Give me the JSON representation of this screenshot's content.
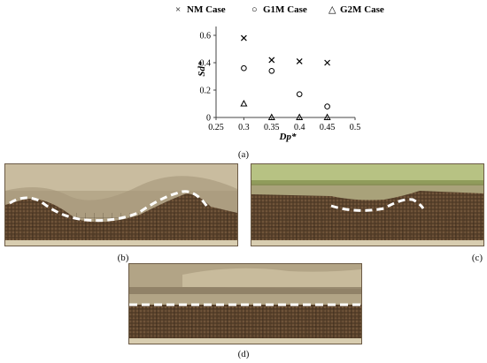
{
  "chart_data": {
    "type": "scatter",
    "title": "",
    "xlabel": "Dp*",
    "ylabel": "Sd*",
    "xlim": [
      0.25,
      0.5
    ],
    "ylim": [
      0,
      0.6
    ],
    "xticks": [
      "0.25",
      "0.3",
      "0.35",
      "0.4",
      "0.45",
      "0.5"
    ],
    "yticks": [
      "0",
      "0.2",
      "0.4",
      "0.6"
    ],
    "legend_position": "top",
    "grid": false,
    "series": [
      {
        "name": "NM Case",
        "marker": "x",
        "x": [
          0.3,
          0.35,
          0.4,
          0.45
        ],
        "y": [
          0.58,
          0.42,
          0.41,
          0.4
        ]
      },
      {
        "name": "G1M Case",
        "marker": "o",
        "x": [
          0.3,
          0.35,
          0.4,
          0.45
        ],
        "y": [
          0.36,
          0.34,
          0.17,
          0.08
        ]
      },
      {
        "name": "G2M Case",
        "marker": "triangle",
        "x": [
          0.3,
          0.35,
          0.4,
          0.45
        ],
        "y": [
          0.1,
          0.0,
          0.0,
          0.0
        ]
      }
    ]
  },
  "legend_symbols": {
    "x": "×",
    "o": "○",
    "triangle": "△"
  },
  "captions": {
    "a": "(a)",
    "b": "(b)",
    "c": "(c)",
    "d": "(d)"
  },
  "colors": {
    "sand": "#5e4630",
    "water": "#b9ab8e",
    "tank_green": "#9aa56a",
    "dashed_line": "#ffffff"
  }
}
